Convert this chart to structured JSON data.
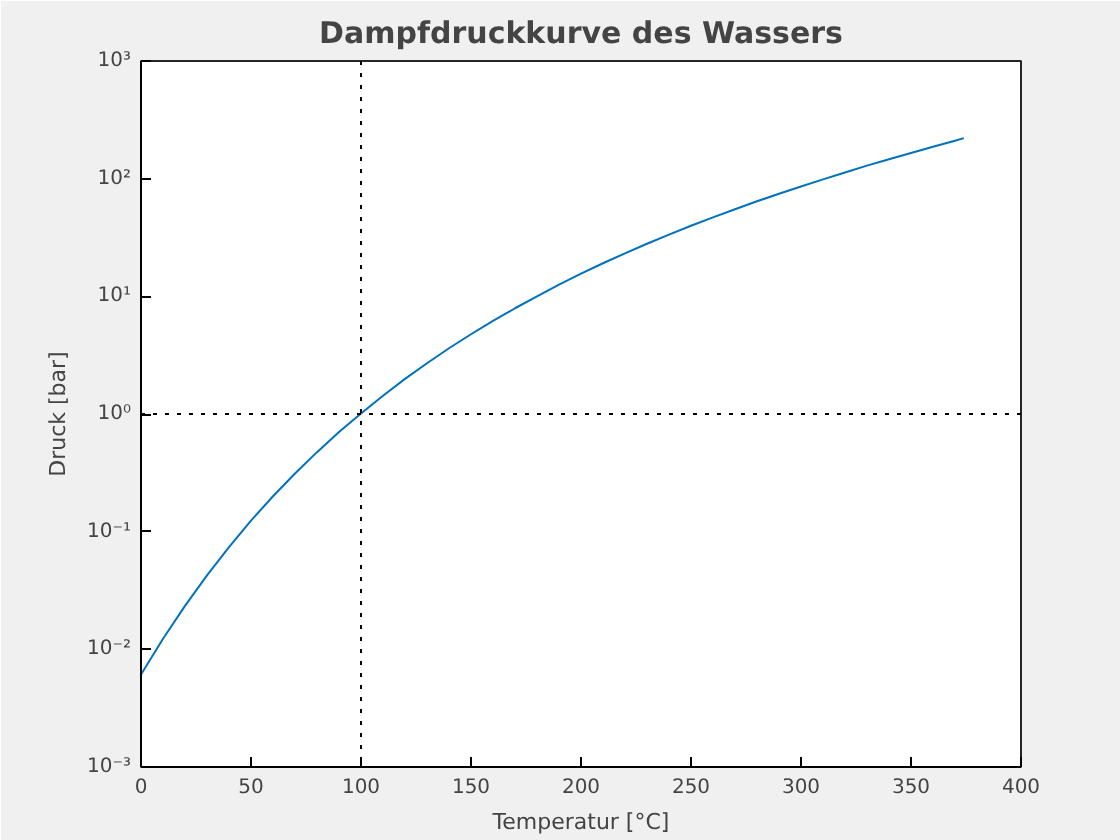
{
  "chart_data": {
    "type": "line",
    "title": "Dampfdruckkurve des Wassers",
    "xlabel": "Temperatur [°C]",
    "ylabel": "Druck [bar]",
    "log": "y",
    "grid": false,
    "xlim": [
      0,
      400
    ],
    "ylim": [
      0.001,
      1000
    ],
    "xticks": [
      0,
      50,
      100,
      150,
      200,
      250,
      300,
      350,
      400
    ],
    "yticks": [
      {
        "value": 0.001,
        "label": "10⁻³"
      },
      {
        "value": 0.01,
        "label": "10⁻²"
      },
      {
        "value": 0.1,
        "label": "10⁻¹"
      },
      {
        "value": 1,
        "label": "10⁰"
      },
      {
        "value": 10,
        "label": "10¹"
      },
      {
        "value": 100,
        "label": "10²"
      },
      {
        "value": 1000,
        "label": "10³"
      }
    ],
    "x": [
      0,
      10,
      20,
      30,
      40,
      50,
      60,
      70,
      80,
      90,
      100,
      110,
      120,
      130,
      140,
      150,
      160,
      170,
      180,
      190,
      200,
      210,
      220,
      230,
      240,
      250,
      260,
      270,
      280,
      290,
      300,
      310,
      320,
      330,
      340,
      350,
      360,
      370,
      374
    ],
    "series": [
      {
        "color": "#0072bd",
        "values": [
          0.0061,
          0.0123,
          0.0234,
          0.0425,
          0.0738,
          0.124,
          0.2,
          0.312,
          0.474,
          0.702,
          1.01,
          1.43,
          1.99,
          2.7,
          3.62,
          4.76,
          6.18,
          7.92,
          10.0,
          12.6,
          15.6,
          19.1,
          23.2,
          28.0,
          33.5,
          39.8,
          46.9,
          55.0,
          64.2,
          74.4,
          85.9,
          98.7,
          113,
          129,
          146,
          165,
          187,
          210,
          221
        ]
      }
    ],
    "ref_lines": [
      {
        "axis": "x",
        "value": 100,
        "color": "#000000",
        "line_style": "dotted"
      },
      {
        "axis": "y",
        "value": 1,
        "color": "#000000",
        "line_style": "dotted"
      }
    ]
  }
}
